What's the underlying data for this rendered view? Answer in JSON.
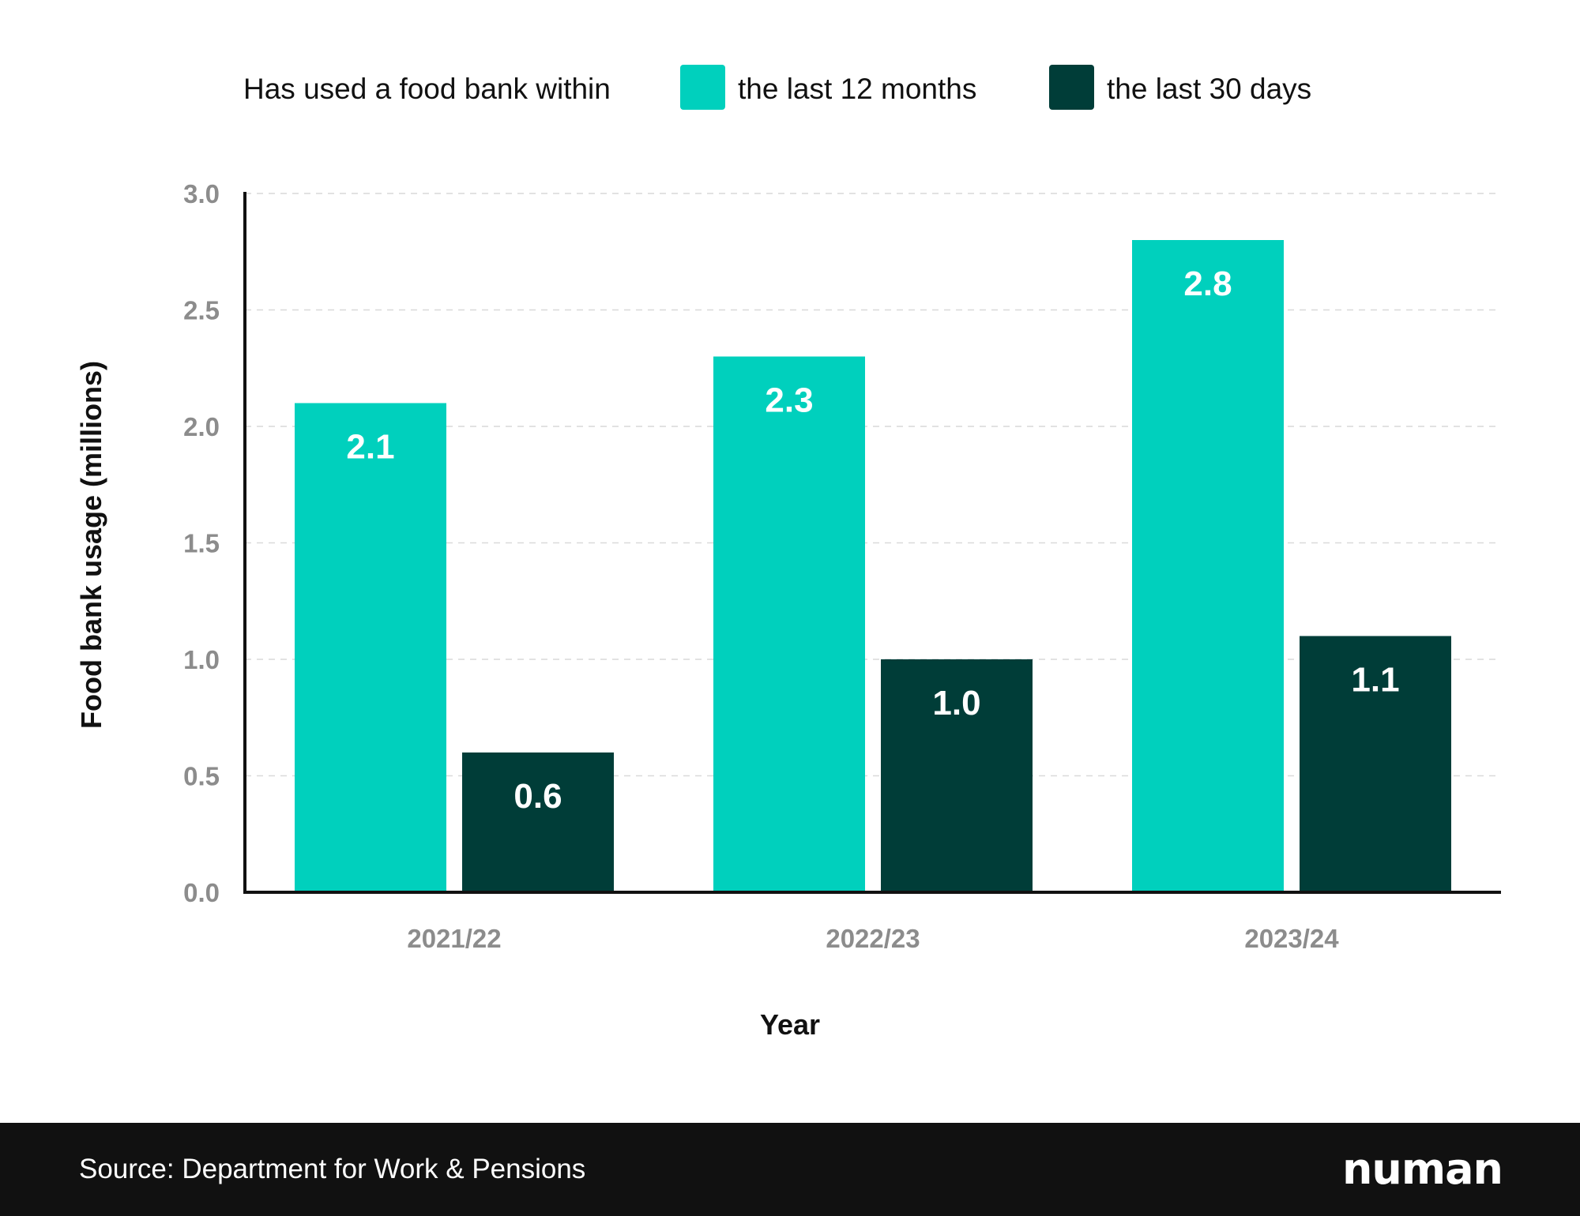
{
  "colors": {
    "series_12_months": "#00D0BD",
    "series_30_days": "#003D38",
    "axis": "#111111",
    "grid": "#d9d9d9",
    "tick_text": "#8c8c8c",
    "label_text": "#111111",
    "value_text": "#ffffff"
  },
  "footer": {
    "source": "Source: Department for Work & Pensions",
    "logo": "numan"
  },
  "chart_data": {
    "type": "bar",
    "title": "",
    "legend_title": "Has used a food bank within",
    "legend_position": "top",
    "xlabel": "Year",
    "ylabel": "Food bank usage (millions)",
    "categories": [
      "2021/22",
      "2022/23",
      "2023/24"
    ],
    "series": [
      {
        "name": "the last 12 months",
        "values": [
          2.1,
          2.3,
          2.8
        ],
        "labels": [
          "2.1",
          "2.3",
          "2.8"
        ]
      },
      {
        "name": "the last 30 days",
        "values": [
          0.6,
          1.0,
          1.1
        ],
        "labels": [
          "0.6",
          "1.0",
          "1.1"
        ]
      }
    ],
    "ylim": [
      0,
      3.0
    ],
    "yticks": [
      "0.0",
      "0.5",
      "1.0",
      "1.5",
      "2.0",
      "2.5",
      "3.0"
    ],
    "grid": true
  }
}
